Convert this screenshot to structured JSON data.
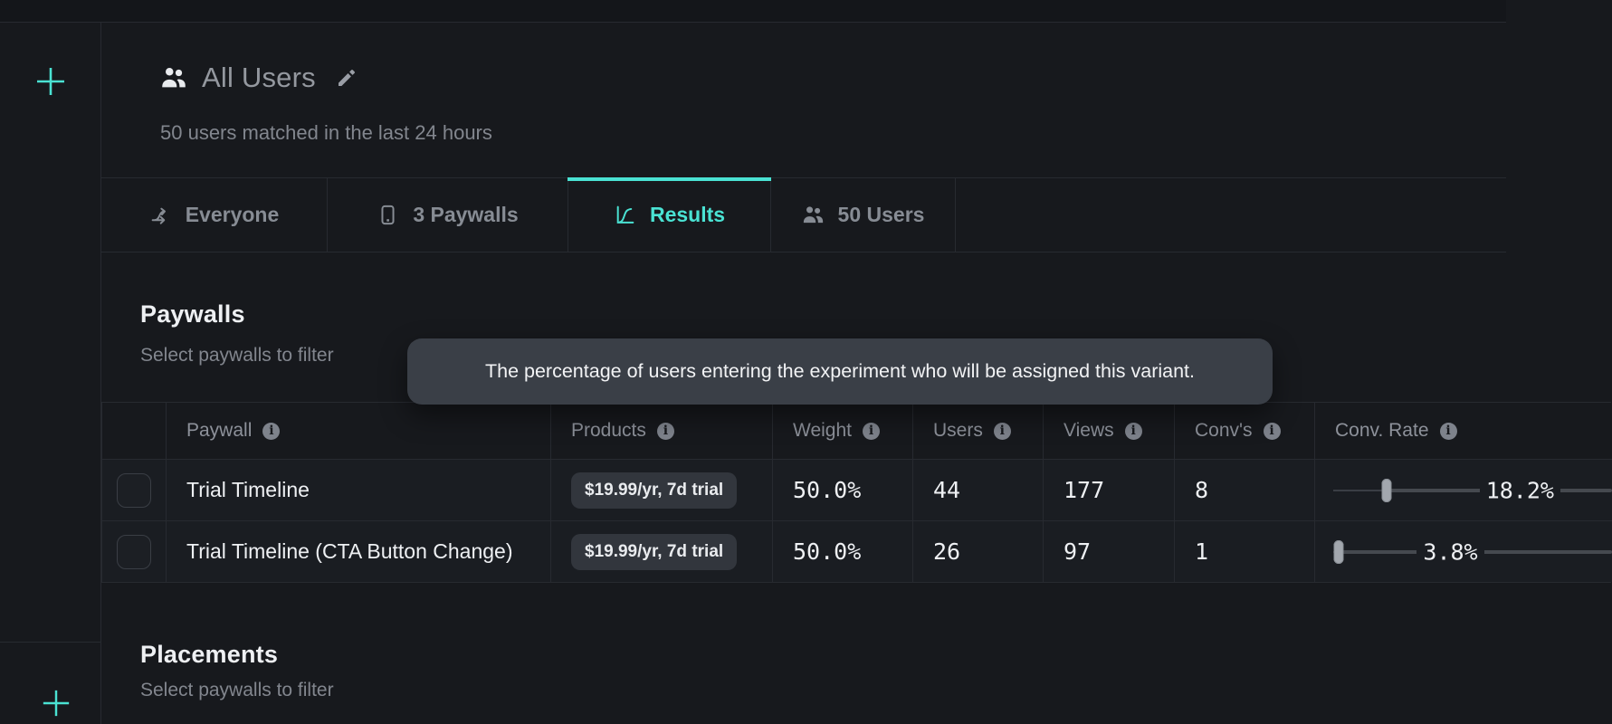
{
  "colors": {
    "accent": "#4ae2d3",
    "background": "#17191d",
    "tooltip_bg": "#3a3f47"
  },
  "header": {
    "title": "All Users",
    "subtitle": "50 users matched in the last 24 hours"
  },
  "tabs": [
    {
      "label": "Everyone",
      "icon": "branch-arrow-icon",
      "active": false
    },
    {
      "label": "3 Paywalls",
      "icon": "phone-icon",
      "active": false
    },
    {
      "label": "Results",
      "icon": "chart-curve-icon",
      "active": true
    },
    {
      "label": "50 Users",
      "icon": "users-icon",
      "active": false
    }
  ],
  "paywalls_section": {
    "title": "Paywalls",
    "subtitle": "Select paywalls to filter"
  },
  "tooltip": {
    "text": "The percentage of users entering the experiment who will be assigned this variant."
  },
  "table": {
    "columns": [
      "Paywall",
      "Products",
      "Weight",
      "Users",
      "Views",
      "Conv's",
      "Conv. Rate"
    ],
    "rows": [
      {
        "paywall": "Trial Timeline",
        "products": "$19.99/yr, 7d trial",
        "weight": "50.0%",
        "users": "44",
        "views": "177",
        "convs": "8",
        "conv_rate": {
          "label": "18.2%",
          "handle_pct": 19,
          "label_pct": 52.5
        }
      },
      {
        "paywall": "Trial Timeline (CTA Button Change)",
        "products": "$19.99/yr, 7d trial",
        "weight": "50.0%",
        "users": "26",
        "views": "97",
        "convs": "1",
        "conv_rate": {
          "label": "3.8%",
          "handle_pct": 2,
          "label_pct": 30
        }
      }
    ]
  },
  "placements_section": {
    "title": "Placements",
    "subtitle": "Select paywalls to filter"
  }
}
